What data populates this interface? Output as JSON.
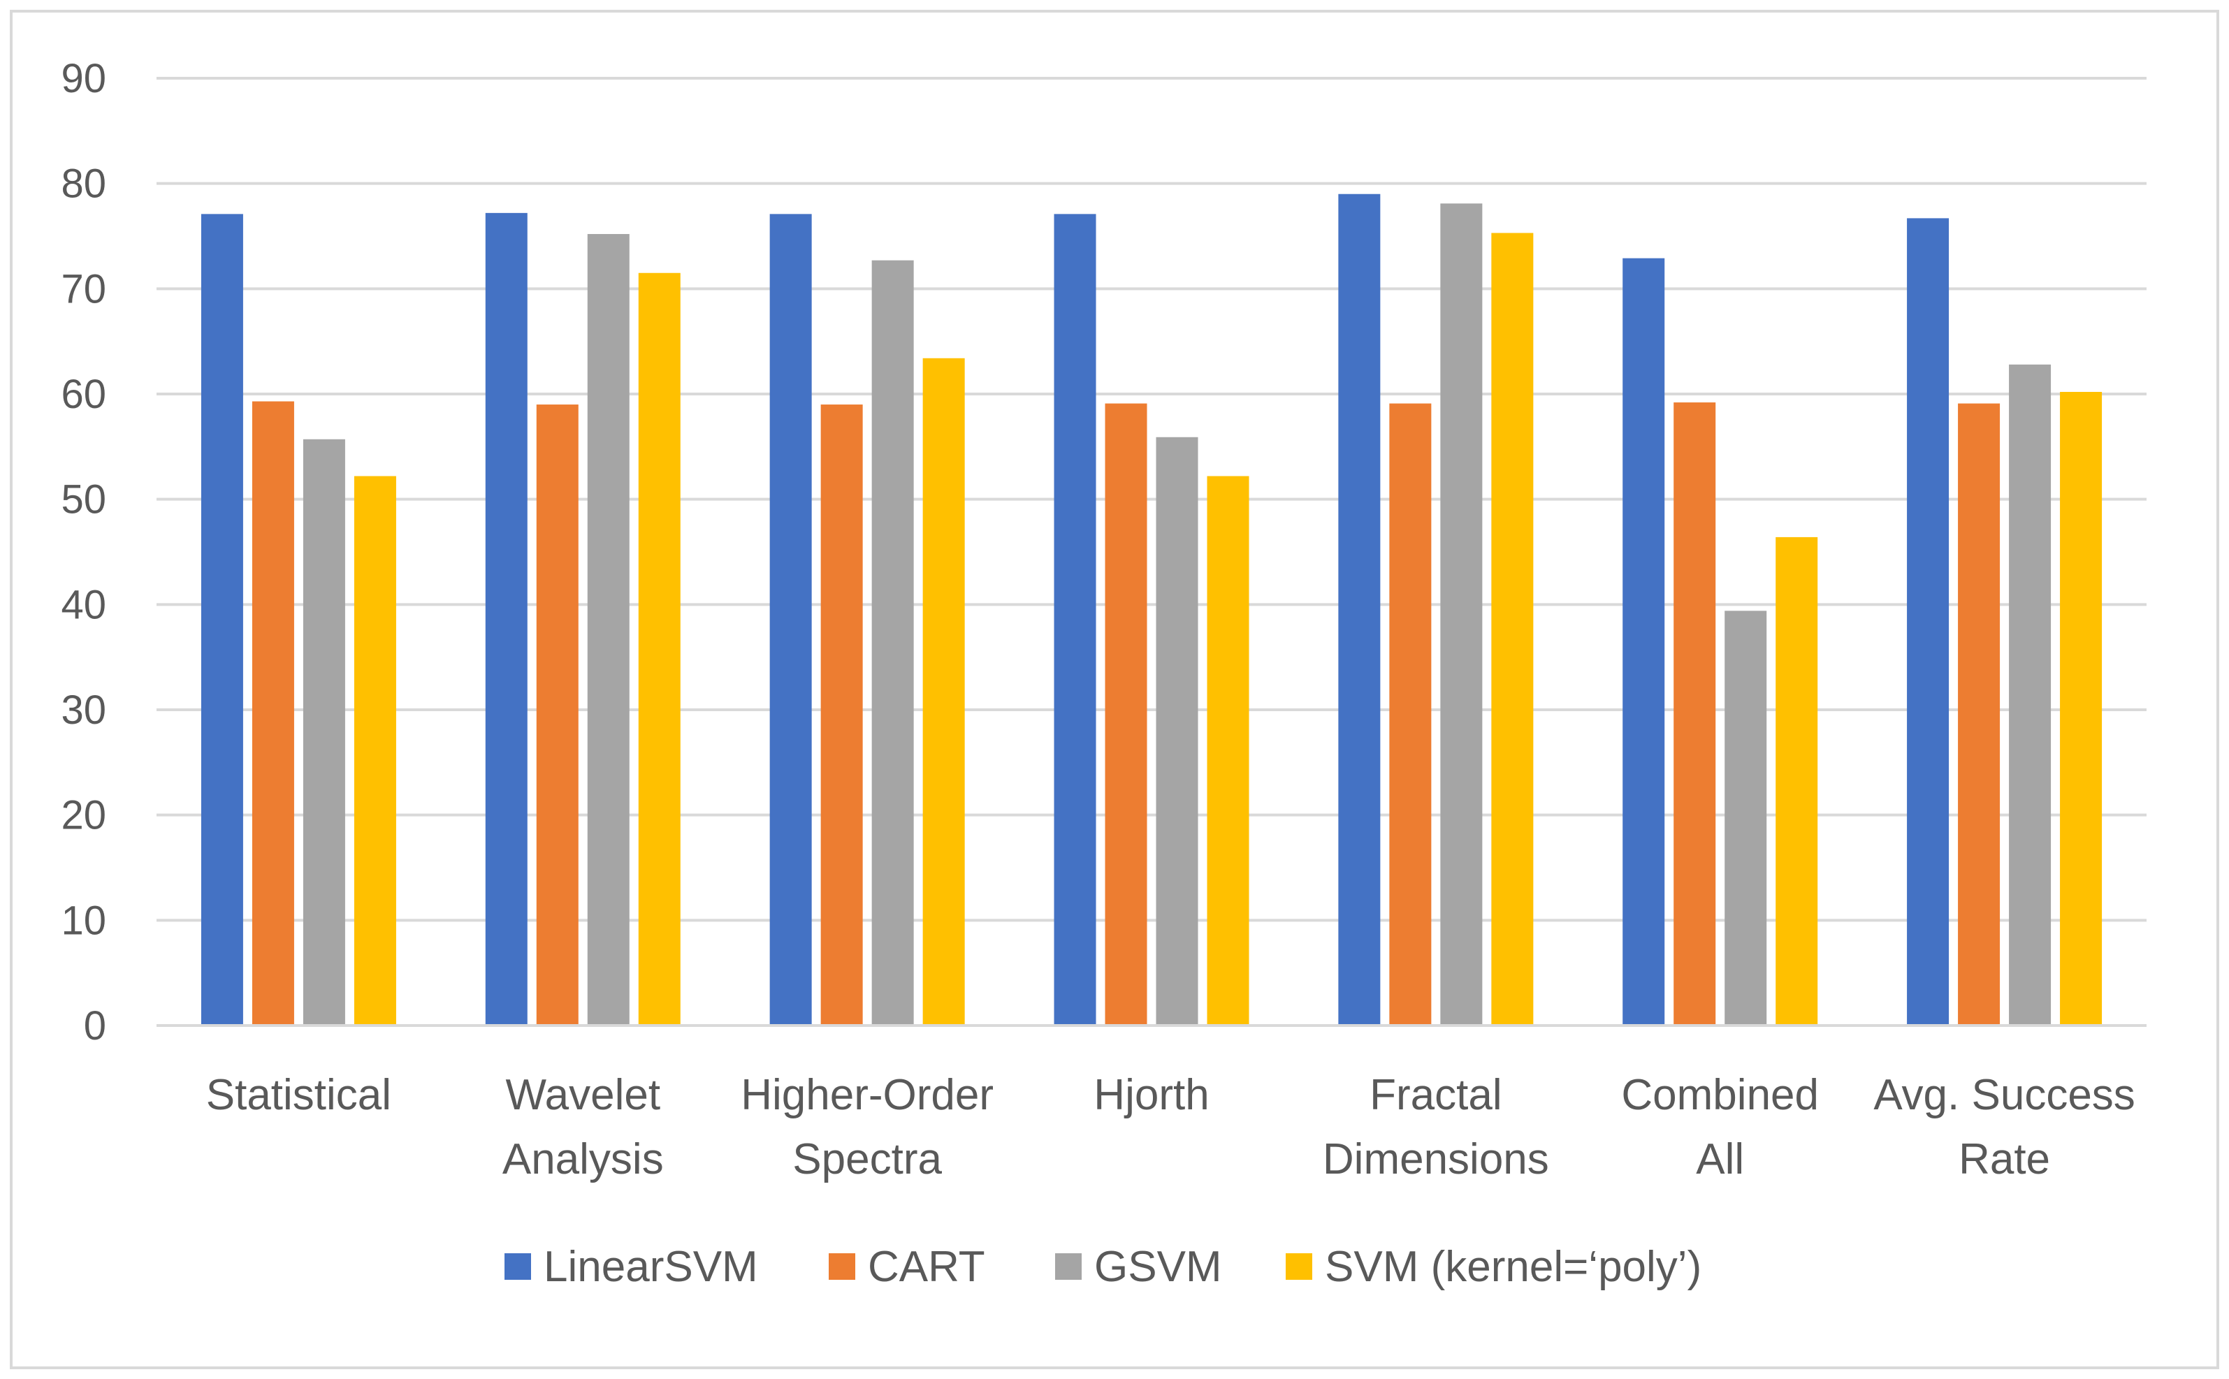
{
  "chart_data": {
    "type": "bar",
    "title": "",
    "xlabel": "",
    "ylabel": "",
    "ylim": [
      0,
      90
    ],
    "yticks": [
      0,
      10,
      20,
      30,
      40,
      50,
      60,
      70,
      80,
      90
    ],
    "grid": true,
    "legend_position": "bottom",
    "categories": [
      [
        "Statistical"
      ],
      [
        "Wavelet",
        "Analysis"
      ],
      [
        "Higher-Order",
        "Spectra"
      ],
      [
        "Hjorth"
      ],
      [
        "Fractal",
        "Dimensions"
      ],
      [
        "Combined",
        "All"
      ],
      [
        "Avg. Success",
        "Rate"
      ]
    ],
    "series": [
      {
        "name": "LinearSVM",
        "color": "#4472C4",
        "values": [
          77.1,
          77.2,
          77.1,
          77.1,
          79.0,
          72.9,
          76.7
        ]
      },
      {
        "name": "CART",
        "color": "#ED7D31",
        "values": [
          59.3,
          59.0,
          59.0,
          59.1,
          59.1,
          59.2,
          59.1
        ]
      },
      {
        "name": "GSVM",
        "color": "#A5A5A5",
        "values": [
          55.7,
          75.2,
          72.7,
          55.9,
          78.1,
          39.4,
          62.8
        ]
      },
      {
        "name": "SVM (kernel=‘poly’)",
        "color": "#FFC000",
        "values": [
          52.2,
          71.5,
          63.4,
          52.2,
          75.3,
          46.4,
          60.2
        ]
      }
    ]
  }
}
